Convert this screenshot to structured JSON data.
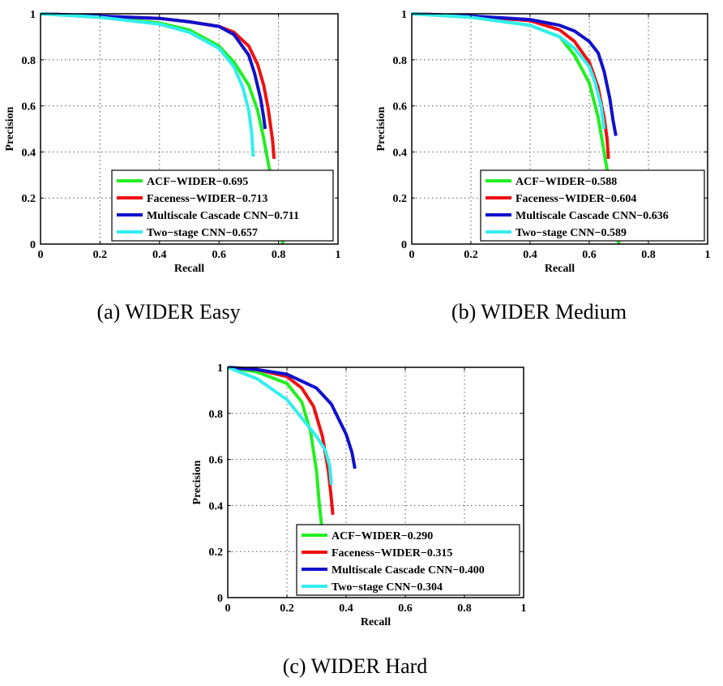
{
  "chart_data": [
    {
      "type": "line",
      "caption": "(a) WIDER Easy",
      "xlabel": "Recall",
      "ylabel": "Precision",
      "xlim": [
        0,
        1
      ],
      "ylim": [
        0,
        1
      ],
      "x_ticks": [
        "0",
        "0.2",
        "0.4",
        "0.6",
        "0.8",
        "1"
      ],
      "y_ticks": [
        "0",
        "0.2",
        "0.4",
        "0.6",
        "0.8",
        "1"
      ],
      "grid": true,
      "legend_position": "bottom-right",
      "series": [
        {
          "name": "ACF−WIDER−0.695",
          "color": "#22ee22",
          "points": [
            [
              0,
              1
            ],
            [
              0.2,
              0.985
            ],
            [
              0.4,
              0.96
            ],
            [
              0.5,
              0.93
            ],
            [
              0.6,
              0.86
            ],
            [
              0.65,
              0.79
            ],
            [
              0.7,
              0.69
            ],
            [
              0.73,
              0.58
            ],
            [
              0.75,
              0.46
            ],
            [
              0.77,
              0.32
            ],
            [
              0.79,
              0.17
            ],
            [
              0.81,
              0.04
            ],
            [
              0.815,
              0.0
            ]
          ]
        },
        {
          "name": "Faceness−WIDER−0.713",
          "color": "#ee1111",
          "points": [
            [
              0,
              1
            ],
            [
              0.2,
              0.99
            ],
            [
              0.4,
              0.98
            ],
            [
              0.5,
              0.965
            ],
            [
              0.6,
              0.945
            ],
            [
              0.65,
              0.92
            ],
            [
              0.7,
              0.86
            ],
            [
              0.73,
              0.78
            ],
            [
              0.75,
              0.69
            ],
            [
              0.765,
              0.59
            ],
            [
              0.78,
              0.45
            ],
            [
              0.785,
              0.37
            ]
          ]
        },
        {
          "name": "Multiscale Cascade CNN−0.711",
          "color": "#1111cc",
          "points": [
            [
              0,
              1
            ],
            [
              0.2,
              0.99
            ],
            [
              0.4,
              0.98
            ],
            [
              0.5,
              0.965
            ],
            [
              0.6,
              0.945
            ],
            [
              0.65,
              0.91
            ],
            [
              0.7,
              0.82
            ],
            [
              0.72,
              0.74
            ],
            [
              0.74,
              0.63
            ],
            [
              0.75,
              0.55
            ],
            [
              0.755,
              0.5
            ]
          ]
        },
        {
          "name": "Two−stage CNN−0.657",
          "color": "#33eeee",
          "points": [
            [
              0,
              1
            ],
            [
              0.2,
              0.985
            ],
            [
              0.4,
              0.955
            ],
            [
              0.5,
              0.92
            ],
            [
              0.6,
              0.85
            ],
            [
              0.65,
              0.77
            ],
            [
              0.68,
              0.68
            ],
            [
              0.7,
              0.58
            ],
            [
              0.71,
              0.48
            ],
            [
              0.715,
              0.38
            ]
          ]
        }
      ]
    },
    {
      "type": "line",
      "caption": "(b) WIDER Medium",
      "xlabel": "Recall",
      "ylabel": "Precision",
      "xlim": [
        0,
        1
      ],
      "ylim": [
        0,
        1
      ],
      "x_ticks": [
        "0",
        "0.2",
        "0.4",
        "0.6",
        "0.8",
        "1"
      ],
      "y_ticks": [
        "0",
        "0.2",
        "0.4",
        "0.6",
        "0.8",
        "1"
      ],
      "grid": true,
      "legend_position": "bottom-right",
      "series": [
        {
          "name": "ACF−WIDER−0.588",
          "color": "#22ee22",
          "points": [
            [
              0,
              1
            ],
            [
              0.2,
              0.985
            ],
            [
              0.4,
              0.95
            ],
            [
              0.5,
              0.9
            ],
            [
              0.55,
              0.82
            ],
            [
              0.6,
              0.7
            ],
            [
              0.63,
              0.55
            ],
            [
              0.65,
              0.4
            ],
            [
              0.67,
              0.25
            ],
            [
              0.69,
              0.1
            ],
            [
              0.7,
              0.0
            ]
          ]
        },
        {
          "name": "Faceness−WIDER−0.604",
          "color": "#ee1111",
          "points": [
            [
              0,
              1
            ],
            [
              0.2,
              0.99
            ],
            [
              0.4,
              0.97
            ],
            [
              0.5,
              0.93
            ],
            [
              0.55,
              0.88
            ],
            [
              0.6,
              0.79
            ],
            [
              0.63,
              0.68
            ],
            [
              0.65,
              0.55
            ],
            [
              0.66,
              0.46
            ],
            [
              0.665,
              0.37
            ]
          ]
        },
        {
          "name": "Multiscale Cascade CNN−0.636",
          "color": "#1111cc",
          "points": [
            [
              0,
              1
            ],
            [
              0.2,
              0.99
            ],
            [
              0.4,
              0.975
            ],
            [
              0.5,
              0.95
            ],
            [
              0.55,
              0.925
            ],
            [
              0.6,
              0.88
            ],
            [
              0.63,
              0.83
            ],
            [
              0.65,
              0.75
            ],
            [
              0.67,
              0.63
            ],
            [
              0.68,
              0.54
            ],
            [
              0.69,
              0.47
            ]
          ]
        },
        {
          "name": "Two−stage CNN−0.589",
          "color": "#33eeee",
          "points": [
            [
              0,
              1
            ],
            [
              0.2,
              0.985
            ],
            [
              0.4,
              0.95
            ],
            [
              0.5,
              0.9
            ],
            [
              0.55,
              0.85
            ],
            [
              0.6,
              0.77
            ],
            [
              0.62,
              0.7
            ],
            [
              0.64,
              0.6
            ],
            [
              0.65,
              0.5
            ]
          ]
        }
      ]
    },
    {
      "type": "line",
      "caption": "(c) WIDER Hard",
      "xlabel": "Recall",
      "ylabel": "Precision",
      "xlim": [
        0,
        1
      ],
      "ylim": [
        0,
        1
      ],
      "x_ticks": [
        "0",
        "0.2",
        "0.4",
        "0.6",
        "0.8",
        "1"
      ],
      "y_ticks": [
        "0",
        "0.2",
        "0.4",
        "0.6",
        "0.8",
        "1"
      ],
      "grid": true,
      "legend_position": "bottom-right",
      "series": [
        {
          "name": "ACF−WIDER−0.290",
          "color": "#22ee22",
          "points": [
            [
              0,
              1
            ],
            [
              0.1,
              0.98
            ],
            [
              0.2,
              0.93
            ],
            [
              0.25,
              0.85
            ],
            [
              0.28,
              0.72
            ],
            [
              0.3,
              0.55
            ],
            [
              0.31,
              0.4
            ],
            [
              0.32,
              0.28
            ]
          ]
        },
        {
          "name": "Faceness−WIDER−0.315",
          "color": "#ee1111",
          "points": [
            [
              0,
              1
            ],
            [
              0.1,
              0.99
            ],
            [
              0.2,
              0.96
            ],
            [
              0.25,
              0.91
            ],
            [
              0.29,
              0.83
            ],
            [
              0.32,
              0.7
            ],
            [
              0.34,
              0.55
            ],
            [
              0.35,
              0.43
            ],
            [
              0.355,
              0.36
            ]
          ]
        },
        {
          "name": "Multiscale Cascade CNN−0.400",
          "color": "#1111cc",
          "points": [
            [
              0,
              1
            ],
            [
              0.1,
              0.99
            ],
            [
              0.2,
              0.97
            ],
            [
              0.3,
              0.91
            ],
            [
              0.35,
              0.84
            ],
            [
              0.4,
              0.71
            ],
            [
              0.42,
              0.63
            ],
            [
              0.43,
              0.56
            ]
          ]
        },
        {
          "name": "Two−stage CNN−0.304",
          "color": "#33eeee",
          "points": [
            [
              0,
              1
            ],
            [
              0.1,
              0.95
            ],
            [
              0.2,
              0.86
            ],
            [
              0.25,
              0.78
            ],
            [
              0.3,
              0.7
            ],
            [
              0.33,
              0.64
            ],
            [
              0.345,
              0.57
            ],
            [
              0.35,
              0.49
            ]
          ]
        }
      ]
    }
  ]
}
